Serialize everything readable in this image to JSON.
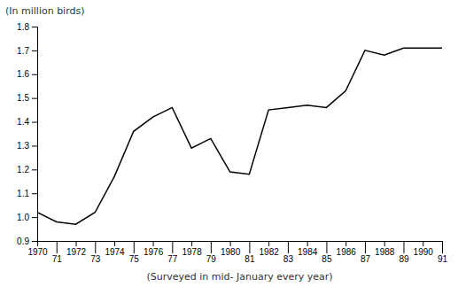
{
  "chart_data": {
    "type": "line",
    "x": [
      1970,
      1971,
      1972,
      1973,
      1974,
      1975,
      1976,
      1977,
      1978,
      1979,
      1980,
      1981,
      1982,
      1983,
      1984,
      1985,
      1986,
      1987,
      1988,
      1989,
      1990,
      1991
    ],
    "values": [
      1.02,
      0.98,
      0.97,
      1.02,
      1.17,
      1.36,
      1.42,
      1.46,
      1.29,
      1.33,
      1.19,
      1.18,
      1.45,
      1.46,
      1.47,
      1.46,
      1.53,
      1.7,
      1.68,
      1.71,
      1.71,
      1.71
    ],
    "color": "#000000",
    "xlabel": "(Surveyed in mid- January every year)",
    "ylabel": "(In million birds)",
    "xlim": [
      1970,
      1991
    ],
    "ylim": [
      0.9,
      1.8
    ],
    "xticks": [
      1970,
      {
        "value": 1971,
        "label": "71"
      },
      1972,
      {
        "value": 1973,
        "label": "73"
      },
      1974,
      {
        "value": 1975,
        "label": "75"
      },
      1976,
      {
        "value": 1977,
        "label": "77"
      },
      1978,
      {
        "value": 1979,
        "label": "79"
      },
      1980,
      {
        "value": 1981,
        "label": "81"
      },
      1982,
      {
        "value": 1983,
        "label": "83"
      },
      1984,
      {
        "value": 1985,
        "label": "85"
      },
      1986,
      {
        "value": 1987,
        "label": "87"
      },
      1988,
      {
        "value": 1989,
        "label": "89"
      },
      1990,
      {
        "value": 1991,
        "label": "91"
      }
    ],
    "yticks": [
      0.9,
      {
        "value": 1.0,
        "label": "1.0"
      },
      1.1,
      1.2,
      1.3,
      1.4,
      1.5,
      1.6,
      1.7,
      1.8
    ],
    "grid": false
  }
}
